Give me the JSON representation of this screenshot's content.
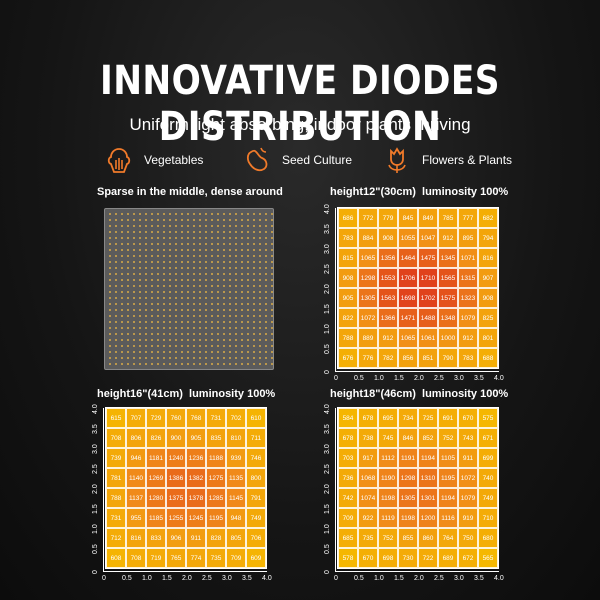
{
  "header": {
    "title": "INNOVATIVE DIODES DISTRIBUTION",
    "subtitle": "Uniform light absorbing, indoor plants thriving"
  },
  "features": [
    {
      "icon": "vegetable-icon",
      "label": "Vegetables"
    },
    {
      "icon": "seed-icon",
      "label": "Seed Culture"
    },
    {
      "icon": "flower-icon",
      "label": "Flowers & Plants"
    }
  ],
  "colors": {
    "accent": "#f07a2a",
    "heat_low": "#f5b800",
    "heat_mid": "#f08a1a",
    "heat_high": "#e0401c"
  },
  "sparse_panel": {
    "title": "Sparse in the middle, dense around"
  },
  "heatmaps": [
    {
      "title": "height12\"(30cm)  luminosity 100%",
      "values": [
        [
          686,
          772,
          779,
          845,
          849,
          785,
          777,
          682
        ],
        [
          783,
          884,
          908,
          1055,
          1047,
          912,
          895,
          794
        ],
        [
          815,
          1065,
          1356,
          1464,
          1475,
          1345,
          1071,
          816
        ],
        [
          908,
          1298,
          1553,
          1706,
          1710,
          1565,
          1315,
          907
        ],
        [
          905,
          1305,
          1563,
          1698,
          1702,
          1575,
          1323,
          908
        ],
        [
          822,
          1072,
          1366,
          1471,
          1488,
          1348,
          1079,
          825
        ],
        [
          788,
          889,
          912,
          1065,
          1061,
          1000,
          912,
          801
        ],
        [
          676,
          776,
          782,
          856,
          851,
          790,
          783,
          688
        ]
      ]
    },
    {
      "title": "height16\"(41cm)  luminosity 100%",
      "values": [
        [
          615,
          707,
          729,
          760,
          768,
          731,
          702,
          610
        ],
        [
          708,
          806,
          826,
          900,
          905,
          835,
          810,
          711
        ],
        [
          739,
          946,
          1181,
          1240,
          1236,
          1188,
          939,
          746
        ],
        [
          781,
          1140,
          1269,
          1386,
          1382,
          1275,
          1135,
          800
        ],
        [
          788,
          1137,
          1280,
          1375,
          1378,
          1285,
          1145,
          791
        ],
        [
          731,
          955,
          1185,
          1255,
          1245,
          1195,
          948,
          749
        ],
        [
          712,
          816,
          833,
          906,
          911,
          828,
          805,
          706
        ],
        [
          608,
          708,
          719,
          765,
          774,
          735,
          709,
          609
        ]
      ]
    },
    {
      "title": "height18\"(46cm)  luminosity 100%",
      "values": [
        [
          584,
          678,
          695,
          734,
          725,
          691,
          670,
          575
        ],
        [
          678,
          738,
          745,
          846,
          852,
          752,
          743,
          671
        ],
        [
          703,
          917,
          1112,
          1191,
          1194,
          1105,
          911,
          699
        ],
        [
          736,
          1068,
          1190,
          1298,
          1310,
          1195,
          1072,
          740
        ],
        [
          742,
          1074,
          1198,
          1305,
          1301,
          1194,
          1079,
          749
        ],
        [
          709,
          922,
          1119,
          1198,
          1200,
          1116,
          919,
          710
        ],
        [
          685,
          735,
          752,
          855,
          860,
          764,
          750,
          680
        ],
        [
          578,
          670,
          698,
          730,
          722,
          689,
          672,
          565
        ]
      ]
    }
  ],
  "axis_ticks": [
    "0",
    "0.5",
    "1.0",
    "1.5",
    "2.0",
    "2.5",
    "3.0",
    "3.5",
    "4.0"
  ]
}
